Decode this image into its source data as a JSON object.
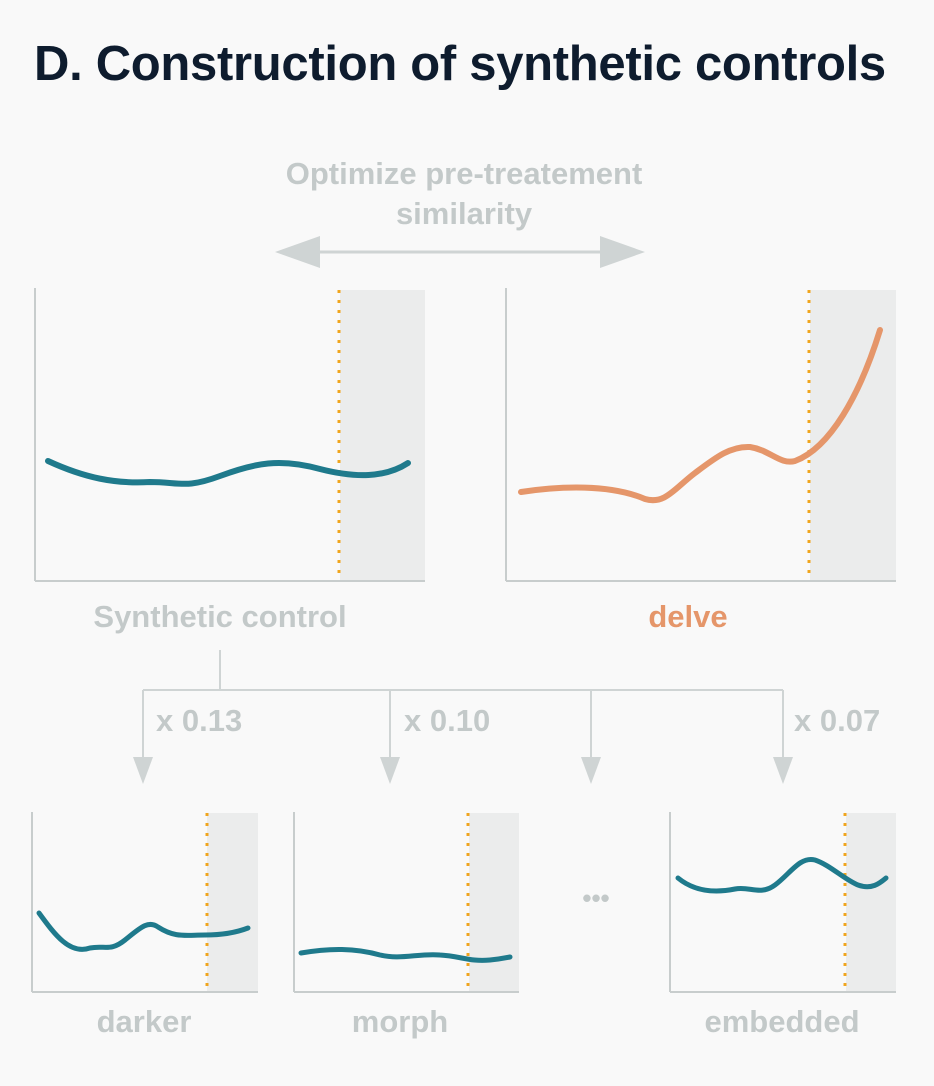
{
  "title": "D. Construction of synthetic controls",
  "optimize_label_line1": "Optimize pre-treatement",
  "optimize_label_line2": "similarity",
  "synthetic_label": "Synthetic control",
  "treated_label": "delve",
  "donors": [
    {
      "label": "darker",
      "weight": "x 0.13"
    },
    {
      "label": "morph",
      "weight": "x 0.10"
    },
    {
      "label": "embedded",
      "weight": "x 0.07"
    }
  ],
  "ellipsis": "•••",
  "colors": {
    "title": "#0e1c2e",
    "muted": "#c3c9c9",
    "teal": "#1f7a8c",
    "orange": "#e5966a",
    "treatment_line": "#f0a51e",
    "shade": "#ebecec",
    "axis": "#c8cdcd"
  }
}
